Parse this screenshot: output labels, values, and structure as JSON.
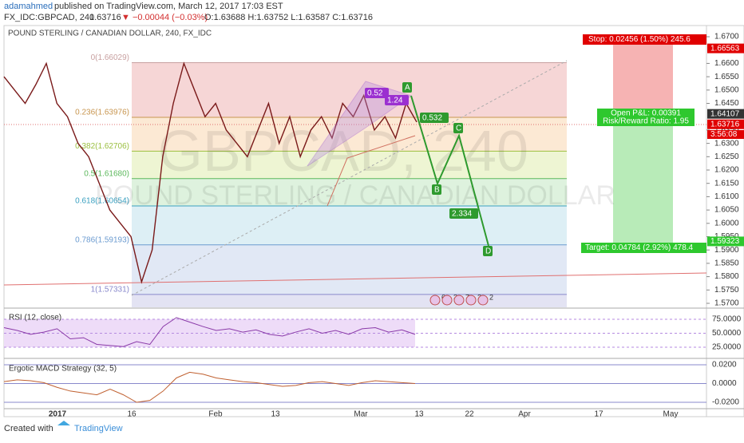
{
  "header": {
    "author": "adamahmed",
    "published": "published on TradingView.com, March 12, 2017 17:03 EST",
    "symbol": "FX_IDC:GBPCAD, 240",
    "last": "1.63716",
    "change": "▼ −0.00044 (−0.03%)",
    "ohlc": "O:1.63688 H:1.63752 L:1.63587 C:1.63716"
  },
  "chart": {
    "name": "POUND STERLING / CANADIAN DOLLAR, 240, FX_IDC",
    "watermark": "GBPCAD, 240",
    "watermark_sub": "POUND STERLING / CANADIAN DOLLAR",
    "ylim": [
      1.5685,
      1.6742
    ],
    "yticks": [
      {
        "value": 1.57,
        "label": "1.5700"
      },
      {
        "value": 1.575,
        "label": "1.5750"
      },
      {
        "value": 1.58,
        "label": "1.5800"
      },
      {
        "value": 1.585,
        "label": "1.5850"
      },
      {
        "value": 1.59,
        "label": "1.5900"
      },
      {
        "value": 1.595,
        "label": "1.5950"
      },
      {
        "value": 1.6,
        "label": "1.6000"
      },
      {
        "value": 1.605,
        "label": "1.6050"
      },
      {
        "value": 1.61,
        "label": "1.6100"
      },
      {
        "value": 1.615,
        "label": "1.6150"
      },
      {
        "value": 1.62,
        "label": "1.6200"
      },
      {
        "value": 1.625,
        "label": "1.6250"
      },
      {
        "value": 1.63,
        "label": "1.6300"
      },
      {
        "value": 1.635,
        "label": "1.6350"
      },
      {
        "value": 1.645,
        "label": "1.6450"
      },
      {
        "value": 1.65,
        "label": "1.6500"
      },
      {
        "value": 1.655,
        "label": "1.6550"
      },
      {
        "value": 1.66,
        "label": "1.6600"
      },
      {
        "value": 1.67,
        "label": "1.6700"
      }
    ],
    "closes": [
      1.655,
      1.65,
      1.645,
      1.652,
      1.66,
      1.645,
      1.64,
      1.63,
      1.625,
      1.615,
      1.605,
      1.6,
      1.595,
      1.578,
      1.59,
      1.625,
      1.645,
      1.66,
      1.65,
      1.64,
      1.645,
      1.635,
      1.63,
      1.625,
      1.635,
      1.645,
      1.63,
      1.64,
      1.625,
      1.635,
      1.64,
      1.632,
      1.645,
      1.64,
      1.648,
      1.635,
      1.64,
      1.632,
      1.645,
      1.638
    ],
    "fib": [
      {
        "price": 1.66029,
        "label": "0(1.66029)"
      },
      {
        "price": 1.63976,
        "label": "0.236(1.63976)"
      },
      {
        "price": 1.62706,
        "label": "0.382(1.62706)"
      },
      {
        "price": 1.6168,
        "label": "0.5(1.61680)"
      },
      {
        "price": 1.60654,
        "label": "0.618(1.60654)"
      },
      {
        "price": 1.59193,
        "label": "0.786(1.59193)"
      },
      {
        "price": 1.57331,
        "label": "1(1.57331)"
      }
    ],
    "price_labels": [
      {
        "price": 1.66563,
        "label": "1.66563"
      },
      {
        "price": 1.64107,
        "label": "1.64107"
      },
      {
        "price": 1.63716,
        "label": "1.63716"
      },
      {
        "price": 1.59323,
        "label": "1.59323"
      }
    ],
    "countdown": "3:56:08",
    "stop": "Stop: 0.02456 (1.50%) 245.6",
    "open_pl": "Open P&L: 0.00391",
    "risk_reward": "Risk/Reward Ratio: 1.95",
    "target": "Target: 0.04784 (2.92%) 478.4",
    "pattern": {
      "a": "A",
      "b": "B",
      "c": "C",
      "d": "D",
      "r1": "0.52",
      "r2": "1.24",
      "r3": "0.532",
      "r4": "2.334"
    },
    "events": [
      "6",
      "3",
      "7",
      "2",
      "2"
    ],
    "dates": [
      "2017",
      "16",
      "Feb",
      "13",
      "Mar",
      "13",
      "22",
      "Apr",
      "17",
      "May"
    ]
  },
  "rsi": {
    "name": "RSI (12, close)",
    "ylim": [
      6.4,
      92.1
    ],
    "yticks": [
      {
        "value": 75,
        "label": "75.0000"
      },
      {
        "value": 50,
        "label": "50.0000"
      },
      {
        "value": 25,
        "label": "25.0000"
      }
    ],
    "values": [
      60,
      55,
      48,
      52,
      58,
      40,
      42,
      30,
      28,
      26,
      35,
      30,
      62,
      78,
      70,
      62,
      55,
      58,
      52,
      56,
      48,
      45,
      52,
      58,
      50,
      55,
      48,
      58,
      60,
      52,
      56,
      48
    ]
  },
  "macd": {
    "name": "Ergotic MACD Strategy (32, 5)",
    "ylim": [
      -0.0268,
      0.026
    ],
    "yticks": [
      {
        "value": 0.02,
        "label": "0.0200"
      },
      {
        "value": 0,
        "label": "0.0000"
      },
      {
        "value": -0.02,
        "label": "-0.0200"
      }
    ],
    "values": [
      0.002,
      0.004,
      0.003,
      0.001,
      -0.004,
      -0.008,
      -0.01,
      -0.012,
      -0.006,
      -0.012,
      -0.02,
      -0.018,
      -0.008,
      0.006,
      0.012,
      0.01,
      0.006,
      0.004,
      0.002,
      0.001,
      -0.001,
      -0.003,
      -0.002,
      0.001,
      0.002,
      0.0,
      -0.002,
      0.001,
      0.003,
      0.002,
      0.001,
      0.0
    ]
  },
  "footer": {
    "created": "Created with",
    "brand": "TradingView"
  }
}
